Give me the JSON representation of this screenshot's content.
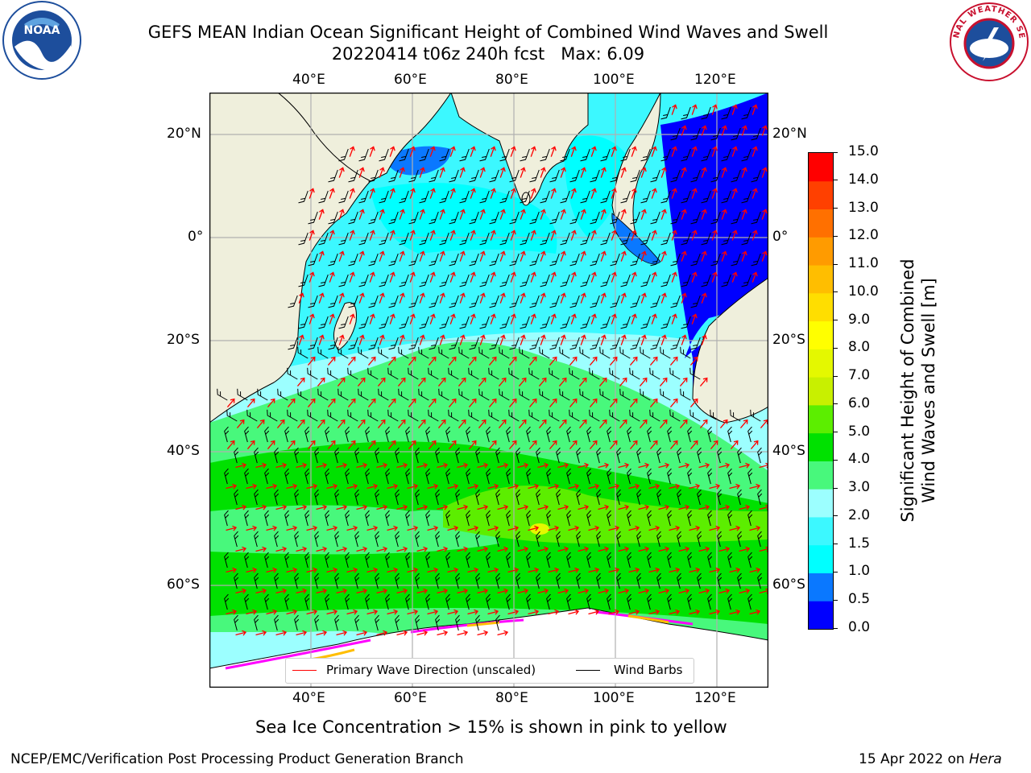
{
  "header": {
    "title_line1": "GEFS MEAN Indian Ocean Significant Height of Combined Wind Waves and Swell",
    "title_line2": "20220414 t06z 240h fcst   Max: 6.09"
  },
  "logos": {
    "left": {
      "text": "NOAA",
      "ring_text": "NATIONAL OCEANIC AND ATMOSPHERIC ADMINISTRATION · U.S. DEPARTMENT OF COMMERCE",
      "color": "#1d4e9c"
    },
    "right": {
      "ring_text": "NATIONAL WEATHER SERVICE",
      "color": "#c8102e"
    }
  },
  "map": {
    "lon_ticks": [
      "40°E",
      "60°E",
      "80°E",
      "100°E",
      "120°E"
    ],
    "lat_ticks_left": [
      "20°N",
      "0°",
      "20°S",
      "40°S",
      "60°S"
    ],
    "lat_ticks_right": [
      "20°N",
      "0°",
      "20°S",
      "40°S",
      "60°S"
    ],
    "colors": {
      "land": "#efefdc",
      "ice": "#ffffff",
      "grid": "#b0b0b0"
    }
  },
  "legend": {
    "items": [
      {
        "label": "Primary Wave Direction (unscaled)",
        "color": "#ff0000"
      },
      {
        "label": "Wind Barbs",
        "color": "#000000"
      }
    ]
  },
  "colorbar": {
    "title_line1": "Significant Height of Combined",
    "title_line2": "Wind Waves and Swell [m]",
    "ticks": [
      "0.0",
      "0.5",
      "1.0",
      "1.5",
      "2.0",
      "3.0",
      "4.0",
      "5.0",
      "6.0",
      "7.0",
      "8.0",
      "9.0",
      "10.0",
      "11.0",
      "12.0",
      "13.0",
      "14.0",
      "15.0"
    ],
    "colors": [
      "#0000ff",
      "#0a78ff",
      "#00ffff",
      "#3cf8ff",
      "#9cffff",
      "#48f87c",
      "#00e100",
      "#5cee00",
      "#c8f000",
      "#e4f800",
      "#ffff00",
      "#ffde00",
      "#ffbe00",
      "#ff9b00",
      "#ff7000",
      "#ff4000",
      "#ff0000"
    ]
  },
  "caption": "Sea Ice Concentration > 15% is shown in pink to yellow",
  "footer": {
    "left": "NCEP/EMC/Verification Post Processing Product Generation Branch",
    "right_date": "15 Apr 2022 on ",
    "right_host": "Hera"
  }
}
